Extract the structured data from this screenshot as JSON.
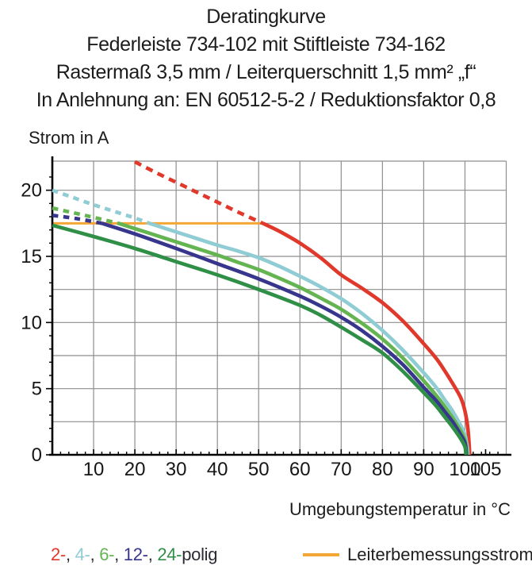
{
  "title": {
    "line1": "Deratingkurve",
    "line2": "Federleiste 734-102 mit Stiftleiste 734-162",
    "line3": "Rastermaß 3,5 mm / Leiterquerschnitt 1,5 mm² „f“",
    "line4": "In Anlehnung an: EN 60512-5-2 / Reduktionsfaktor 0,8"
  },
  "axes": {
    "y_label": "Strom in A",
    "x_label": "Umgebungstemperatur in °C"
  },
  "legend": {
    "poles": [
      {
        "label": "2-",
        "color": "#e0392c"
      },
      {
        "label": "4-",
        "color": "#8fccd3"
      },
      {
        "label": "6-",
        "color": "#64b551"
      },
      {
        "label": "12-",
        "color": "#38368c"
      },
      {
        "label": "24-",
        "color": "#2f8f47"
      }
    ],
    "separator": ", ",
    "suffix": "polig",
    "text_color": "#2b2b33",
    "rated_current_label": "Leiterbemessungsstrom",
    "rated_current_color": "#f4a636"
  },
  "chart_data": {
    "type": "line",
    "title": "Deratingkurve",
    "xlabel": "Umgebungstemperatur in °C",
    "ylabel": "Strom in A",
    "x_axis": {
      "range": [
        0,
        110
      ],
      "ticks": [
        10,
        20,
        30,
        40,
        50,
        60,
        70,
        80,
        90,
        100,
        105
      ],
      "minor_tick_step": 2
    },
    "y_axis": {
      "range": [
        0,
        22.2
      ],
      "ticks": [
        0,
        5,
        10,
        15,
        20
      ],
      "minor_tick_step": 1,
      "grid_step": 2.5
    },
    "grid": true,
    "grid_color": "#8e8e8e",
    "rated_current": {
      "label": "Leiterbemessungsstrom",
      "value": 17.5,
      "x_start": 0,
      "x_end": 51.2,
      "color": "#f4a636"
    },
    "series": [
      {
        "name": "2-polig",
        "color": "#e0392c",
        "dashed_points": [
          [
            20,
            22.15
          ],
          [
            25,
            21.35
          ],
          [
            30,
            20.6
          ],
          [
            35,
            19.85
          ],
          [
            40,
            19.1
          ],
          [
            45,
            18.35
          ],
          [
            51,
            17.5
          ]
        ],
        "solid_points": [
          [
            51,
            17.5
          ],
          [
            55,
            16.9
          ],
          [
            60,
            16.0
          ],
          [
            65,
            14.9
          ],
          [
            70,
            13.6
          ],
          [
            75,
            12.6
          ],
          [
            80,
            11.5
          ],
          [
            85,
            10.1
          ],
          [
            90,
            8.4
          ],
          [
            93,
            7.3
          ],
          [
            95,
            6.4
          ],
          [
            97,
            5.4
          ],
          [
            99,
            4.3
          ],
          [
            100,
            3.3
          ],
          [
            100.7,
            2.0
          ],
          [
            101.1,
            0.3
          ],
          [
            101.1,
            0
          ]
        ]
      },
      {
        "name": "4-polig",
        "color": "#8fccd3",
        "dashed_points": [
          [
            0,
            20.0
          ],
          [
            5,
            19.45
          ],
          [
            10,
            18.9
          ],
          [
            15,
            18.4
          ],
          [
            20,
            17.9
          ],
          [
            23.5,
            17.5
          ]
        ],
        "solid_points": [
          [
            23.5,
            17.5
          ],
          [
            30,
            16.85
          ],
          [
            35,
            16.35
          ],
          [
            40,
            15.85
          ],
          [
            45,
            15.4
          ],
          [
            50,
            14.9
          ],
          [
            55,
            14.25
          ],
          [
            60,
            13.5
          ],
          [
            65,
            12.7
          ],
          [
            70,
            11.8
          ],
          [
            75,
            10.7
          ],
          [
            80,
            9.4
          ],
          [
            85,
            7.9
          ],
          [
            90,
            6.2
          ],
          [
            93,
            5.1
          ],
          [
            95,
            4.2
          ],
          [
            97,
            3.3
          ],
          [
            99,
            2.2
          ],
          [
            100,
            1.5
          ],
          [
            100.6,
            0.5
          ],
          [
            100.7,
            0
          ]
        ]
      },
      {
        "name": "6-polig",
        "color": "#64b551",
        "dashed_points": [
          [
            0,
            18.65
          ],
          [
            5,
            18.3
          ],
          [
            10,
            17.95
          ],
          [
            16,
            17.5
          ]
        ],
        "solid_points": [
          [
            16,
            17.5
          ],
          [
            20,
            17.1
          ],
          [
            25,
            16.6
          ],
          [
            30,
            16.1
          ],
          [
            35,
            15.6
          ],
          [
            40,
            15.1
          ],
          [
            45,
            14.55
          ],
          [
            50,
            14.0
          ],
          [
            55,
            13.35
          ],
          [
            60,
            12.65
          ],
          [
            65,
            11.85
          ],
          [
            70,
            11.0
          ],
          [
            75,
            9.95
          ],
          [
            80,
            8.75
          ],
          [
            85,
            7.3
          ],
          [
            90,
            5.6
          ],
          [
            93,
            4.5
          ],
          [
            95,
            3.7
          ],
          [
            97,
            2.8
          ],
          [
            99,
            1.8
          ],
          [
            100,
            1.1
          ],
          [
            100.4,
            0.3
          ],
          [
            100.45,
            0
          ]
        ]
      },
      {
        "name": "12-polig",
        "color": "#38368c",
        "dashed_points": [
          [
            0,
            18.1
          ],
          [
            6,
            17.85
          ],
          [
            12,
            17.5
          ]
        ],
        "solid_points": [
          [
            12,
            17.5
          ],
          [
            20,
            16.7
          ],
          [
            30,
            15.6
          ],
          [
            40,
            14.45
          ],
          [
            50,
            13.3
          ],
          [
            60,
            12.0
          ],
          [
            65,
            11.25
          ],
          [
            70,
            10.4
          ],
          [
            75,
            9.4
          ],
          [
            80,
            8.2
          ],
          [
            85,
            6.8
          ],
          [
            90,
            5.1
          ],
          [
            93,
            4.1
          ],
          [
            95,
            3.3
          ],
          [
            97,
            2.5
          ],
          [
            99,
            1.5
          ],
          [
            100,
            0.9
          ],
          [
            100.3,
            0.2
          ],
          [
            100.3,
            0
          ]
        ]
      },
      {
        "name": "24-polig",
        "color": "#2f8f47",
        "dashed_points": [],
        "solid_points": [
          [
            0,
            17.35
          ],
          [
            10,
            16.5
          ],
          [
            20,
            15.6
          ],
          [
            30,
            14.6
          ],
          [
            40,
            13.6
          ],
          [
            50,
            12.5
          ],
          [
            60,
            11.3
          ],
          [
            65,
            10.55
          ],
          [
            70,
            9.65
          ],
          [
            75,
            8.7
          ],
          [
            80,
            7.7
          ],
          [
            85,
            6.3
          ],
          [
            90,
            4.7
          ],
          [
            93,
            3.7
          ],
          [
            95,
            2.9
          ],
          [
            97,
            2.1
          ],
          [
            99,
            1.2
          ],
          [
            100,
            0.6
          ],
          [
            100.2,
            0.1
          ],
          [
            100.2,
            0
          ]
        ]
      }
    ]
  }
}
